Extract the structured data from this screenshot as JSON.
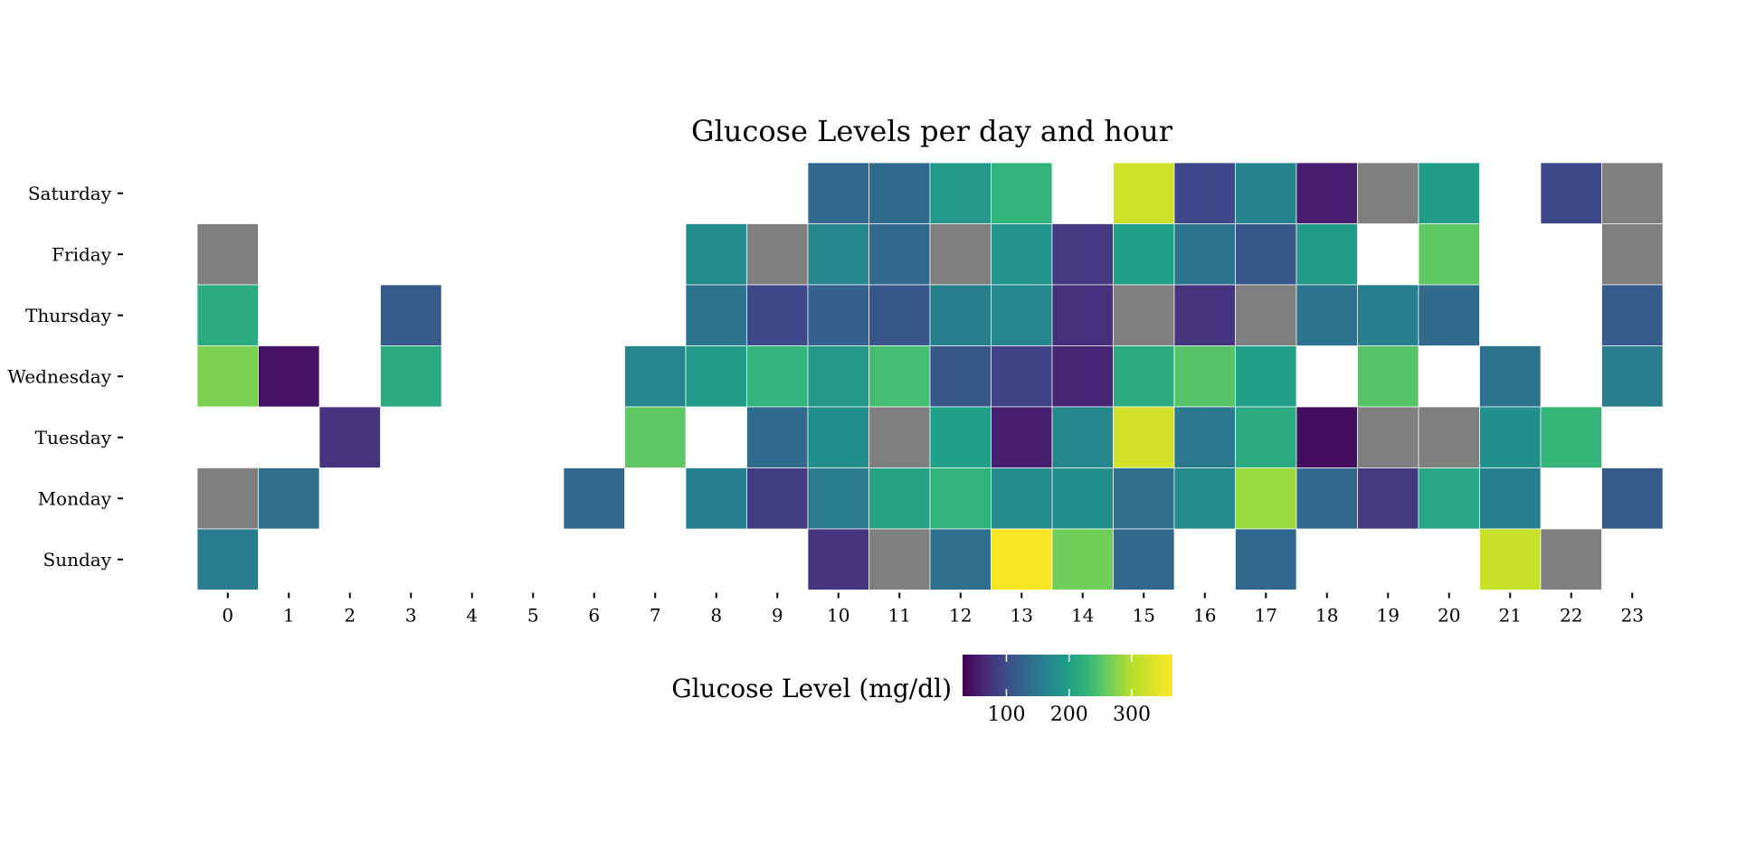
{
  "chart_data": {
    "type": "heatmap",
    "title": "Glucose Levels per day and hour",
    "xlabel": "",
    "ylabel": "",
    "x": [
      "0",
      "1",
      "2",
      "3",
      "4",
      "5",
      "6",
      "7",
      "8",
      "9",
      "10",
      "11",
      "12",
      "13",
      "14",
      "15",
      "16",
      "17",
      "18",
      "19",
      "20",
      "21",
      "22",
      "23"
    ],
    "y": [
      "Sunday",
      "Monday",
      "Tuesday",
      "Wednesday",
      "Thursday",
      "Friday",
      "Saturday"
    ],
    "colorbar": {
      "label": "Glucose Level (mg/dl)",
      "ticks": [
        100,
        200,
        300
      ],
      "range": [
        30,
        365
      ],
      "colormap": "viridis"
    },
    "na_color": "#7f7f7f",
    "cells": [
      {
        "day": "Saturday",
        "hour": 10,
        "value": 130
      },
      {
        "day": "Saturday",
        "hour": 11,
        "value": 135
      },
      {
        "day": "Saturday",
        "hour": 12,
        "value": 190
      },
      {
        "day": "Saturday",
        "hour": 13,
        "value": 225
      },
      {
        "day": "Saturday",
        "hour": 15,
        "value": 320
      },
      {
        "day": "Saturday",
        "hour": 16,
        "value": 95
      },
      {
        "day": "Saturday",
        "hour": 17,
        "value": 165
      },
      {
        "day": "Saturday",
        "hour": 18,
        "value": 55
      },
      {
        "day": "Saturday",
        "hour": 19,
        "value": null
      },
      {
        "day": "Saturday",
        "hour": 20,
        "value": 195
      },
      {
        "day": "Saturday",
        "hour": 22,
        "value": 95
      },
      {
        "day": "Saturday",
        "hour": 23,
        "value": null
      },
      {
        "day": "Friday",
        "hour": 0,
        "value": null
      },
      {
        "day": "Friday",
        "hour": 8,
        "value": 175
      },
      {
        "day": "Friday",
        "hour": 9,
        "value": null
      },
      {
        "day": "Friday",
        "hour": 10,
        "value": 170
      },
      {
        "day": "Friday",
        "hour": 11,
        "value": 130
      },
      {
        "day": "Friday",
        "hour": 12,
        "value": null
      },
      {
        "day": "Friday",
        "hour": 13,
        "value": 185
      },
      {
        "day": "Friday",
        "hour": 14,
        "value": 80
      },
      {
        "day": "Friday",
        "hour": 15,
        "value": 200
      },
      {
        "day": "Friday",
        "hour": 16,
        "value": 145
      },
      {
        "day": "Friday",
        "hour": 17,
        "value": 110
      },
      {
        "day": "Friday",
        "hour": 18,
        "value": 195
      },
      {
        "day": "Friday",
        "hour": 20,
        "value": 255
      },
      {
        "day": "Friday",
        "hour": 23,
        "value": null
      },
      {
        "day": "Thursday",
        "hour": 0,
        "value": 215
      },
      {
        "day": "Thursday",
        "hour": 3,
        "value": 115
      },
      {
        "day": "Thursday",
        "hour": 8,
        "value": 145
      },
      {
        "day": "Thursday",
        "hour": 9,
        "value": 95
      },
      {
        "day": "Thursday",
        "hour": 10,
        "value": 120
      },
      {
        "day": "Thursday",
        "hour": 11,
        "value": 110
      },
      {
        "day": "Thursday",
        "hour": 12,
        "value": 160
      },
      {
        "day": "Thursday",
        "hour": 13,
        "value": 170
      },
      {
        "day": "Thursday",
        "hour": 14,
        "value": 70
      },
      {
        "day": "Thursday",
        "hour": 15,
        "value": null
      },
      {
        "day": "Thursday",
        "hour": 16,
        "value": 75
      },
      {
        "day": "Thursday",
        "hour": 17,
        "value": null
      },
      {
        "day": "Thursday",
        "hour": 18,
        "value": 145
      },
      {
        "day": "Thursday",
        "hour": 19,
        "value": 160
      },
      {
        "day": "Thursday",
        "hour": 20,
        "value": 135
      },
      {
        "day": "Thursday",
        "hour": 23,
        "value": 115
      },
      {
        "day": "Wednesday",
        "hour": 0,
        "value": 270
      },
      {
        "day": "Wednesday",
        "hour": 1,
        "value": 45
      },
      {
        "day": "Wednesday",
        "hour": 3,
        "value": 215
      },
      {
        "day": "Wednesday",
        "hour": 7,
        "value": 170
      },
      {
        "day": "Wednesday",
        "hour": 8,
        "value": 195
      },
      {
        "day": "Wednesday",
        "hour": 9,
        "value": 225
      },
      {
        "day": "Wednesday",
        "hour": 10,
        "value": 190
      },
      {
        "day": "Wednesday",
        "hour": 11,
        "value": 240
      },
      {
        "day": "Wednesday",
        "hour": 12,
        "value": 110
      },
      {
        "day": "Wednesday",
        "hour": 13,
        "value": 90
      },
      {
        "day": "Wednesday",
        "hour": 14,
        "value": 60
      },
      {
        "day": "Wednesday",
        "hour": 15,
        "value": 215
      },
      {
        "day": "Wednesday",
        "hour": 16,
        "value": 250
      },
      {
        "day": "Wednesday",
        "hour": 17,
        "value": 200
      },
      {
        "day": "Wednesday",
        "hour": 19,
        "value": 250
      },
      {
        "day": "Wednesday",
        "hour": 21,
        "value": 145
      },
      {
        "day": "Wednesday",
        "hour": 23,
        "value": 155
      },
      {
        "day": "Tuesday",
        "hour": 2,
        "value": 75
      },
      {
        "day": "Tuesday",
        "hour": 7,
        "value": 255
      },
      {
        "day": "Tuesday",
        "hour": 9,
        "value": 135
      },
      {
        "day": "Tuesday",
        "hour": 10,
        "value": 180
      },
      {
        "day": "Tuesday",
        "hour": 11,
        "value": null
      },
      {
        "day": "Tuesday",
        "hour": 12,
        "value": 200
      },
      {
        "day": "Tuesday",
        "hour": 13,
        "value": 55
      },
      {
        "day": "Tuesday",
        "hour": 14,
        "value": 170
      },
      {
        "day": "Tuesday",
        "hour": 15,
        "value": 325
      },
      {
        "day": "Tuesday",
        "hour": 16,
        "value": 150
      },
      {
        "day": "Tuesday",
        "hour": 17,
        "value": 215
      },
      {
        "day": "Tuesday",
        "hour": 18,
        "value": 40
      },
      {
        "day": "Tuesday",
        "hour": 19,
        "value": null
      },
      {
        "day": "Tuesday",
        "hour": 20,
        "value": null
      },
      {
        "day": "Tuesday",
        "hour": 21,
        "value": 180
      },
      {
        "day": "Tuesday",
        "hour": 22,
        "value": 230
      },
      {
        "day": "Monday",
        "hour": 0,
        "value": null
      },
      {
        "day": "Monday",
        "hour": 1,
        "value": 140
      },
      {
        "day": "Monday",
        "hour": 6,
        "value": 130
      },
      {
        "day": "Monday",
        "hour": 8,
        "value": 160
      },
      {
        "day": "Monday",
        "hour": 9,
        "value": 85
      },
      {
        "day": "Monday",
        "hour": 10,
        "value": 155
      },
      {
        "day": "Monday",
        "hour": 11,
        "value": 205
      },
      {
        "day": "Monday",
        "hour": 12,
        "value": 225
      },
      {
        "day": "Monday",
        "hour": 13,
        "value": 175
      },
      {
        "day": "Monday",
        "hour": 14,
        "value": 180
      },
      {
        "day": "Monday",
        "hour": 15,
        "value": 140
      },
      {
        "day": "Monday",
        "hour": 16,
        "value": 175
      },
      {
        "day": "Monday",
        "hour": 17,
        "value": 285
      },
      {
        "day": "Monday",
        "hour": 18,
        "value": 130
      },
      {
        "day": "Monday",
        "hour": 19,
        "value": 80
      },
      {
        "day": "Monday",
        "hour": 20,
        "value": 210
      },
      {
        "day": "Monday",
        "hour": 21,
        "value": 160
      },
      {
        "day": "Monday",
        "hour": 23,
        "value": 115
      },
      {
        "day": "Sunday",
        "hour": 0,
        "value": 155
      },
      {
        "day": "Sunday",
        "hour": 10,
        "value": 75
      },
      {
        "day": "Sunday",
        "hour": 11,
        "value": null
      },
      {
        "day": "Sunday",
        "hour": 12,
        "value": 140
      },
      {
        "day": "Sunday",
        "hour": 13,
        "value": 360
      },
      {
        "day": "Sunday",
        "hour": 14,
        "value": 265
      },
      {
        "day": "Sunday",
        "hour": 15,
        "value": 130
      },
      {
        "day": "Sunday",
        "hour": 17,
        "value": 130
      },
      {
        "day": "Sunday",
        "hour": 21,
        "value": 315
      },
      {
        "day": "Sunday",
        "hour": 22,
        "value": null
      }
    ]
  }
}
